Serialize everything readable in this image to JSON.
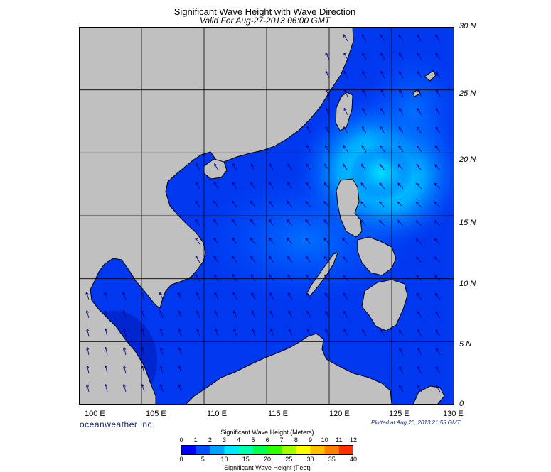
{
  "header": {
    "title": "Significant Wave Height with Wave Direction",
    "subtitle": "Valid For Aug-27-2013 06:00 GMT"
  },
  "map": {
    "lon_labels": [
      "100 E",
      "105 E",
      "110 E",
      "115 E",
      "120 E",
      "125 E",
      "130 E"
    ],
    "lat_labels": [
      "30 N",
      "25 N",
      "20 N",
      "15 N",
      "10 N",
      "5 N",
      "0"
    ],
    "lon_range": [
      100,
      130
    ],
    "lat_range": [
      0,
      30
    ],
    "land_color": "#c0c0c0",
    "grid": true,
    "arrow_color": "#000080"
  },
  "footer": {
    "brand": "oceanweather inc.",
    "plotted": "Plotted at Aug 26, 2013 21:55 GMT"
  },
  "colorbar": {
    "title_meters": "Significant Wave Height (Meters)",
    "title_feet": "Significant Wave Height (Feet)",
    "meter_ticks": [
      "0",
      "1",
      "2",
      "3",
      "4",
      "5",
      "6",
      "7",
      "8",
      "9",
      "10",
      "11",
      "12"
    ],
    "feet_ticks": [
      "0",
      "5",
      "10",
      "15",
      "20",
      "25",
      "30",
      "35",
      "40"
    ],
    "colors": [
      "#0000ff",
      "#0050ff",
      "#00a0ff",
      "#00e8ff",
      "#00ffb0",
      "#00ff50",
      "#30ff00",
      "#a0ff00",
      "#ffff00",
      "#ffc000",
      "#ff8000",
      "#ff3000"
    ]
  }
}
